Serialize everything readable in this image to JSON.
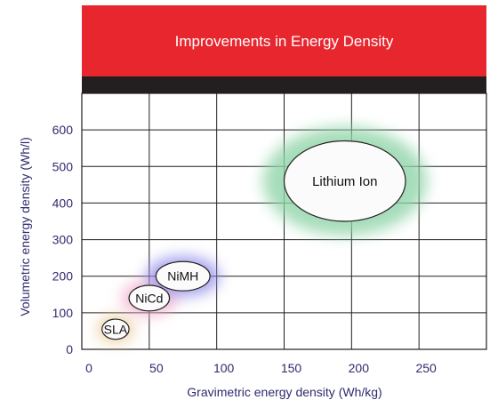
{
  "chart_data": {
    "type": "scatter",
    "title": "Improvements in Energy Density",
    "xlabel": "Gravimetric energy density (Wh/kg)",
    "ylabel": "Volumetric energy density (Wh/l)",
    "xlim": [
      0,
      300
    ],
    "ylim": [
      0,
      700
    ],
    "xticks": [
      0,
      50,
      100,
      150,
      200,
      250
    ],
    "yticks": [
      0,
      100,
      200,
      300,
      400,
      500,
      600
    ],
    "grid": true,
    "points": [
      {
        "label": "SLA",
        "x": 25,
        "y": 55,
        "x_span": [
          15,
          35
        ],
        "y_span": [
          30,
          85
        ],
        "halo_color": "#e8c890"
      },
      {
        "label": "NiCd",
        "x": 50,
        "y": 140,
        "x_span": [
          35,
          65
        ],
        "y_span": [
          105,
          175
        ],
        "halo_color": "#f0a8c8"
      },
      {
        "label": "NiMH",
        "x": 75,
        "y": 200,
        "x_span": [
          55,
          95
        ],
        "y_span": [
          160,
          240
        ],
        "halo_color": "#8a86e8"
      },
      {
        "label": "Lithium Ion",
        "x": 195,
        "y": 460,
        "x_span": [
          150,
          240
        ],
        "y_span": [
          350,
          570
        ],
        "halo_color": "#8fd4a8"
      }
    ]
  }
}
